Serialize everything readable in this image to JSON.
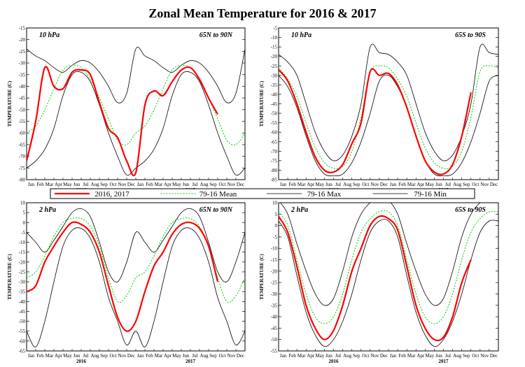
{
  "title": "Zonal Mean Temperature for 2016 & 2017",
  "months": [
    "Jan",
    "Feb",
    "Mar",
    "Apr",
    "May",
    "Jun",
    "Jul",
    "Aug",
    "Sep",
    "Oct",
    "Nov",
    "Dec",
    "Jan",
    "Feb",
    "Mar",
    "Apr",
    "May",
    "Jun",
    "Jul",
    "Aug",
    "Sep",
    "Oct",
    "Nov",
    "Dec"
  ],
  "year_labels": [
    "2016",
    "2017"
  ],
  "legend": [
    {
      "label": "2016, 2017",
      "color": "#ff0000",
      "style": "solid-thick"
    },
    {
      "label": "79-16 Mean",
      "color": "#00cc00",
      "style": "dotted"
    },
    {
      "label": "79-16 Max",
      "color": "#000000",
      "style": "solid"
    },
    {
      "label": "79-16 Min",
      "color": "#000000",
      "style": "solid"
    }
  ],
  "chart_data": [
    {
      "type": "line",
      "level": "10 hPa",
      "region": "65N to 90N",
      "ylabel": "TEMPERATURE (C)",
      "ylim": [
        -80,
        -15
      ],
      "yticks": [
        -80,
        -75,
        -70,
        -65,
        -60,
        -55,
        -50,
        -45,
        -40,
        -35,
        -30,
        -25,
        -20,
        -15
      ],
      "x": [
        0,
        1,
        2,
        3,
        4,
        5,
        6,
        7,
        8,
        9,
        10,
        11,
        12,
        13,
        14,
        15,
        16,
        17,
        18,
        19,
        20,
        21,
        22,
        23,
        24
      ],
      "series": [
        {
          "name": "79-16 Max",
          "values": [
            -24,
            -27,
            -29,
            -32,
            -34,
            -31,
            -29,
            -30,
            -34,
            -40,
            -47,
            -43,
            -24,
            -27,
            -29,
            -32,
            -34,
            -31,
            -29,
            -30,
            -34,
            -40,
            -47,
            -43,
            -24
          ]
        },
        {
          "name": "79-16 Mean",
          "values": [
            -60,
            -57,
            -50,
            -41,
            -33,
            -31,
            -32,
            -37,
            -45,
            -54,
            -63,
            -65,
            -60,
            -57,
            -50,
            -41,
            -33,
            -31,
            -32,
            -37,
            -45,
            -54,
            -63,
            -65,
            -60
          ]
        },
        {
          "name": "79-16 Min",
          "values": [
            -75,
            -72,
            -67,
            -58,
            -44,
            -35,
            -34,
            -38,
            -48,
            -60,
            -70,
            -78,
            -75,
            -72,
            -67,
            -58,
            -44,
            -35,
            -34,
            -38,
            -48,
            -60,
            -70,
            -78,
            -75
          ]
        },
        {
          "name": "2016, 2017",
          "values": [
            -72,
            -55,
            -32,
            -40,
            -41,
            -34,
            -33,
            -35,
            -47,
            -58,
            -62,
            -72,
            -77,
            -48,
            -42,
            -44,
            -38,
            -33,
            -32,
            -37,
            -45,
            -52,
            null,
            null,
            null
          ]
        }
      ]
    },
    {
      "type": "line",
      "level": "10 hPa",
      "region": "65S to 90S",
      "ylabel": "TEMPERATURE (C)",
      "ylim": [
        -85,
        -5
      ],
      "yticks": [
        -85,
        -80,
        -75,
        -70,
        -65,
        -60,
        -55,
        -50,
        -45,
        -40,
        -35,
        -30,
        -25,
        -20,
        -15,
        -10,
        -5
      ],
      "x": [
        0,
        1,
        2,
        3,
        4,
        5,
        6,
        7,
        8,
        9,
        10,
        11,
        12,
        13,
        14,
        15,
        16,
        17,
        18,
        19,
        20,
        21,
        22,
        23,
        24
      ],
      "series": [
        {
          "name": "79-16 Max",
          "values": [
            -19,
            -23,
            -30,
            -45,
            -60,
            -70,
            -75,
            -72,
            -62,
            -45,
            -15,
            -18,
            -19,
            -23,
            -30,
            -45,
            -60,
            -70,
            -75,
            -72,
            -62,
            -45,
            -15,
            -18,
            -19
          ]
        },
        {
          "name": "79-16 Mean",
          "values": [
            -26,
            -32,
            -41,
            -55,
            -68,
            -76,
            -79,
            -78,
            -70,
            -52,
            -28,
            -25,
            -26,
            -32,
            -41,
            -55,
            -68,
            -76,
            -79,
            -78,
            -70,
            -52,
            -28,
            -25,
            -26
          ]
        },
        {
          "name": "79-16 Min",
          "values": [
            -30,
            -36,
            -47,
            -62,
            -75,
            -82,
            -83,
            -82,
            -76,
            -65,
            -50,
            -33,
            -30,
            -36,
            -47,
            -62,
            -75,
            -82,
            -83,
            -82,
            -76,
            -65,
            -50,
            -33,
            -30
          ]
        },
        {
          "name": "2016, 2017",
          "values": [
            -27,
            -33,
            -45,
            -60,
            -73,
            -80,
            -81,
            -77,
            -66,
            -55,
            -28,
            -30,
            -29,
            -35,
            -47,
            -62,
            -75,
            -81,
            -82,
            -77,
            -62,
            -39,
            null,
            null,
            null
          ]
        }
      ]
    },
    {
      "type": "line",
      "level": "2 hPa",
      "region": "65N to 90N",
      "ylabel": "TEMPERATURE (C)",
      "ylim": [
        -65,
        10
      ],
      "yticks": [
        -65,
        -60,
        -55,
        -50,
        -45,
        -40,
        -35,
        -30,
        -25,
        -20,
        -15,
        -10,
        -5,
        0,
        5,
        10
      ],
      "x": [
        0,
        1,
        2,
        3,
        4,
        5,
        6,
        7,
        8,
        9,
        10,
        11,
        12,
        13,
        14,
        15,
        16,
        17,
        18,
        19,
        20,
        21,
        22,
        23,
        24
      ],
      "series": [
        {
          "name": "79-16 Max",
          "values": [
            -5,
            -10,
            -15,
            -9,
            -2,
            5,
            7,
            3,
            -10,
            -25,
            -30,
            -20,
            -5,
            -10,
            -15,
            -9,
            -2,
            5,
            7,
            3,
            -10,
            -25,
            -30,
            -20,
            -5
          ]
        },
        {
          "name": "79-16 Mean",
          "values": [
            -28,
            -25,
            -17,
            -7,
            0,
            2,
            2,
            -2,
            -12,
            -28,
            -40,
            -37,
            -28,
            -25,
            -17,
            -7,
            0,
            2,
            2,
            -2,
            -12,
            -28,
            -40,
            -37,
            -28
          ]
        },
        {
          "name": "79-16 Min",
          "values": [
            -55,
            -63,
            -50,
            -30,
            -12,
            -4,
            -3,
            -8,
            -20,
            -38,
            -50,
            -62,
            -55,
            -63,
            -50,
            -30,
            -12,
            -4,
            -3,
            -8,
            -20,
            -38,
            -50,
            -62,
            -55
          ]
        },
        {
          "name": "2016, 2017",
          "values": [
            -35,
            -32,
            -20,
            -12,
            -5,
            0,
            -1,
            -5,
            -15,
            -32,
            -48,
            -55,
            -50,
            -35,
            -22,
            -15,
            -6,
            -1,
            0,
            -3,
            -12,
            -30,
            null,
            null,
            null
          ]
        }
      ]
    },
    {
      "type": "line",
      "level": "2 hPa",
      "region": "65S to 90S",
      "ylabel": "TEMPERATURE (C)",
      "ylim": [
        -55,
        10
      ],
      "yticks": [
        -55,
        -50,
        -45,
        -40,
        -35,
        -30,
        -25,
        -20,
        -15,
        -10,
        -5,
        0,
        5,
        10
      ],
      "x": [
        0,
        1,
        2,
        3,
        4,
        5,
        6,
        7,
        8,
        9,
        10,
        11,
        12,
        13,
        14,
        15,
        16,
        17,
        18,
        19,
        20,
        21,
        22,
        23,
        24
      ],
      "series": [
        {
          "name": "79-16 Max",
          "values": [
            11,
            5,
            -8,
            -20,
            -30,
            -35,
            -32,
            -20,
            -5,
            5,
            10,
            12,
            11,
            5,
            -8,
            -20,
            -30,
            -35,
            -32,
            -20,
            -5,
            5,
            10,
            12,
            11
          ]
        },
        {
          "name": "79-16 Mean",
          "values": [
            6,
            0,
            -15,
            -30,
            -40,
            -43,
            -40,
            -30,
            -15,
            -3,
            3,
            6,
            6,
            0,
            -15,
            -30,
            -40,
            -43,
            -40,
            -30,
            -15,
            -3,
            3,
            6,
            6
          ]
        },
        {
          "name": "79-16 Min",
          "values": [
            2,
            -5,
            -22,
            -38,
            -48,
            -53,
            -50,
            -42,
            -30,
            -15,
            -3,
            2,
            2,
            -5,
            -22,
            -38,
            -48,
            -53,
            -50,
            -42,
            -30,
            -15,
            -3,
            2,
            2
          ]
        },
        {
          "name": "2016, 2017",
          "values": [
            4,
            -3,
            -18,
            -35,
            -45,
            -50,
            -46,
            -35,
            -20,
            -10,
            0,
            4,
            3,
            -2,
            -18,
            -35,
            -45,
            -50,
            -49,
            -40,
            -25,
            -15,
            null,
            null,
            null
          ]
        }
      ]
    }
  ]
}
